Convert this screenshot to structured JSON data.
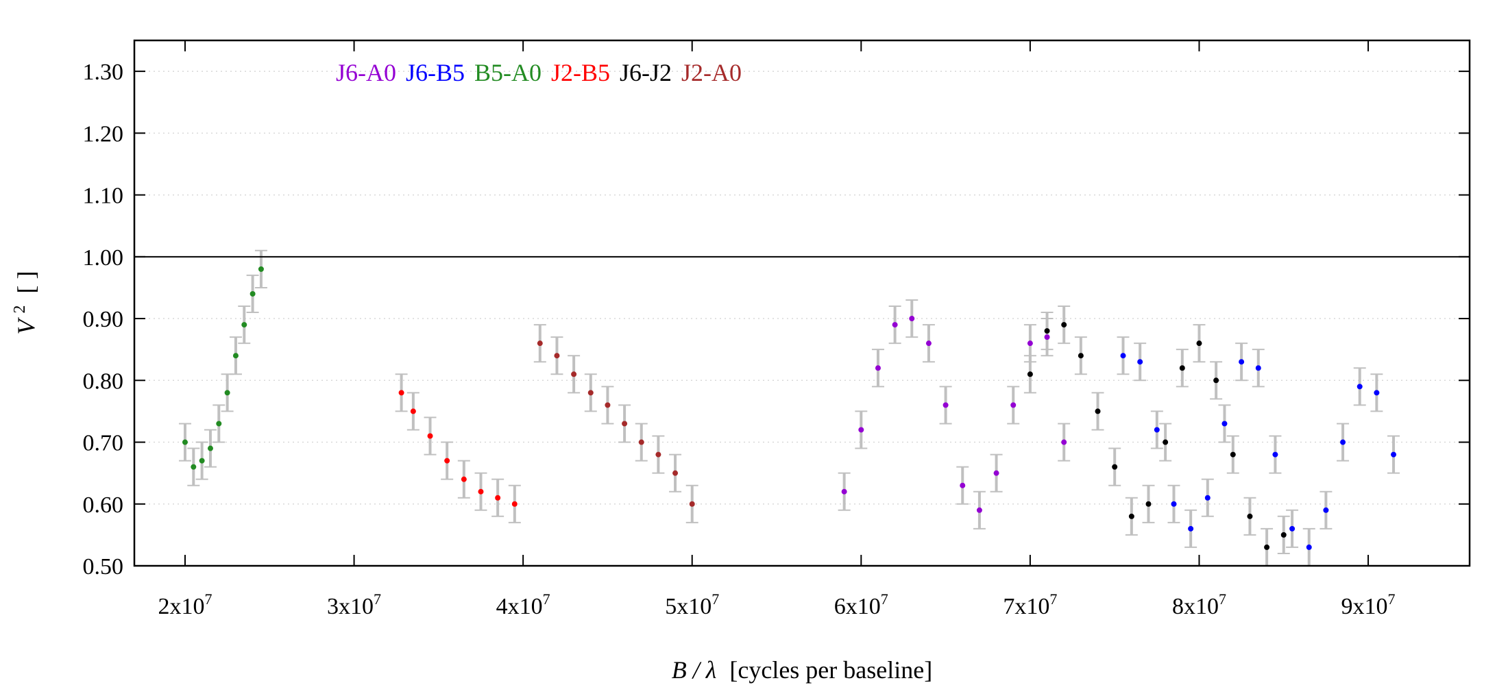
{
  "chart_data": {
    "type": "scatter",
    "title": "",
    "xlabel_var": "B / λ",
    "xlabel_units": "[cycles per baseline]",
    "ylabel_base": "V",
    "ylabel_sup": "2",
    "ylabel_units": "[ ]",
    "xlim": [
      17000000,
      96000000
    ],
    "ylim": [
      0.5,
      1.35
    ],
    "x_ticks": [
      {
        "value": 20000000,
        "mant": "2x10",
        "exp": "7"
      },
      {
        "value": 30000000,
        "mant": "3x10",
        "exp": "7"
      },
      {
        "value": 40000000,
        "mant": "4x10",
        "exp": "7"
      },
      {
        "value": 50000000,
        "mant": "5x10",
        "exp": "7"
      },
      {
        "value": 60000000,
        "mant": "6x10",
        "exp": "7"
      },
      {
        "value": 70000000,
        "mant": "7x10",
        "exp": "7"
      },
      {
        "value": 80000000,
        "mant": "8x10",
        "exp": "7"
      },
      {
        "value": 90000000,
        "mant": "9x10",
        "exp": "7"
      }
    ],
    "y_ticks": [
      {
        "value": 0.5,
        "label": "0.50"
      },
      {
        "value": 0.6,
        "label": "0.60"
      },
      {
        "value": 0.7,
        "label": "0.70"
      },
      {
        "value": 0.8,
        "label": "0.80"
      },
      {
        "value": 0.9,
        "label": "0.90"
      },
      {
        "value": 1.0,
        "label": "1.00"
      },
      {
        "value": 1.1,
        "label": "1.10"
      },
      {
        "value": 1.2,
        "label": "1.20"
      },
      {
        "value": 1.3,
        "label": "1.30"
      }
    ],
    "grid": "horizontal dotted",
    "reference_line_y": 1.0,
    "errorbar_color": "#c0c0c0",
    "legend_position": "top-left, horizontal",
    "series": [
      {
        "name": "J6-A0",
        "color": "#9400d3",
        "x": [
          59000000,
          60000000,
          61000000,
          62000000,
          63000000,
          64000000,
          65000000,
          66000000,
          67000000,
          68000000,
          69000000,
          70000000,
          71000000,
          72000000
        ],
        "y": [
          0.62,
          0.72,
          0.82,
          0.89,
          0.9,
          0.86,
          0.76,
          0.63,
          0.59,
          0.65,
          0.76,
          0.86,
          0.87,
          0.7
        ],
        "err": 0.03
      },
      {
        "name": "J6-B5",
        "color": "#0000ff",
        "x": [
          75500000,
          76500000,
          77500000,
          78500000,
          79500000,
          80500000,
          81500000,
          82500000,
          83500000,
          84500000,
          85500000,
          86500000,
          87500000,
          88500000,
          89500000,
          90500000,
          91500000
        ],
        "y": [
          0.84,
          0.83,
          0.72,
          0.6,
          0.56,
          0.61,
          0.73,
          0.83,
          0.82,
          0.68,
          0.56,
          0.53,
          0.59,
          0.7,
          0.79,
          0.78,
          0.68
        ],
        "err": 0.03
      },
      {
        "name": "B5-A0",
        "color": "#228b22",
        "x": [
          20000000,
          20500000,
          21000000,
          21500000,
          22000000,
          22500000,
          23000000,
          23500000,
          24000000,
          24500000
        ],
        "y": [
          0.7,
          0.66,
          0.67,
          0.69,
          0.73,
          0.78,
          0.84,
          0.89,
          0.94,
          0.98
        ],
        "err": 0.03
      },
      {
        "name": "J2-B5",
        "color": "#ff0000",
        "x": [
          32800000,
          33500000,
          34500000,
          35500000,
          36500000,
          37500000,
          38500000,
          39500000
        ],
        "y": [
          0.78,
          0.75,
          0.71,
          0.67,
          0.64,
          0.62,
          0.61,
          0.6
        ],
        "err": 0.03
      },
      {
        "name": "J6-J2",
        "color": "#000000",
        "x": [
          70000000,
          71000000,
          72000000,
          73000000,
          74000000,
          75000000,
          76000000,
          77000000,
          78000000,
          79000000,
          80000000,
          81000000,
          82000000,
          83000000,
          84000000,
          85000000
        ],
        "y": [
          0.81,
          0.88,
          0.89,
          0.84,
          0.75,
          0.66,
          0.58,
          0.6,
          0.7,
          0.82,
          0.86,
          0.8,
          0.68,
          0.58,
          0.53,
          0.55
        ],
        "err": 0.03
      },
      {
        "name": "J2-A0",
        "color": "#a52a2a",
        "x": [
          41000000,
          42000000,
          43000000,
          44000000,
          45000000,
          46000000,
          47000000,
          48000000,
          49000000,
          50000000
        ],
        "y": [
          0.86,
          0.84,
          0.81,
          0.78,
          0.76,
          0.73,
          0.7,
          0.68,
          0.65,
          0.6
        ],
        "err": 0.03
      }
    ]
  }
}
